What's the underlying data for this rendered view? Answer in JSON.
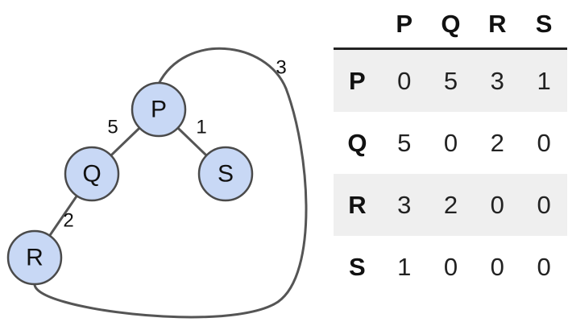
{
  "graph": {
    "nodes": [
      {
        "id": "P",
        "label": "P"
      },
      {
        "id": "Q",
        "label": "Q"
      },
      {
        "id": "S",
        "label": "S"
      },
      {
        "id": "R",
        "label": "R"
      }
    ],
    "edges": [
      {
        "from": "P",
        "to": "Q",
        "weight": "5"
      },
      {
        "from": "P",
        "to": "S",
        "weight": "1"
      },
      {
        "from": "Q",
        "to": "R",
        "weight": "2"
      },
      {
        "from": "P",
        "to": "R",
        "weight": "3"
      }
    ]
  },
  "matrix": {
    "column_headers": [
      "P",
      "Q",
      "R",
      "S"
    ],
    "rows": [
      {
        "label": "P",
        "values": [
          "0",
          "5",
          "3",
          "1"
        ]
      },
      {
        "label": "Q",
        "values": [
          "5",
          "0",
          "2",
          "0"
        ]
      },
      {
        "label": "R",
        "values": [
          "3",
          "2",
          "0",
          "0"
        ]
      },
      {
        "label": "S",
        "values": [
          "1",
          "0",
          "0",
          "0"
        ]
      }
    ]
  }
}
